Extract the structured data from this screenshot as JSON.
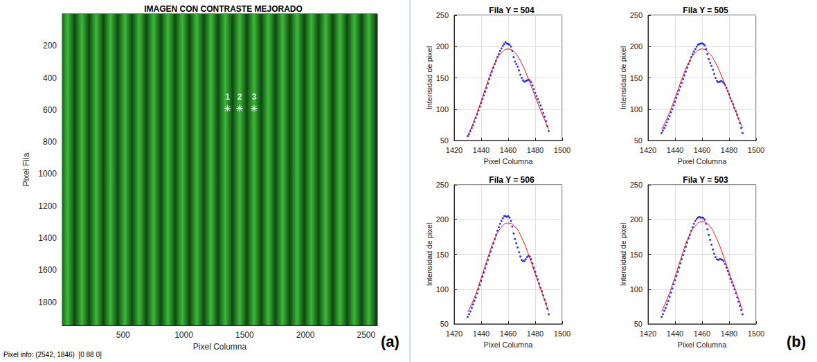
{
  "figure": {
    "panel_labels": [
      "(a)",
      "(b)"
    ],
    "status_text": "Pixel info: (2542, 1846)  [0 88 0]"
  },
  "chart_data": [
    {
      "type": "image",
      "title": "IMAGEN CON CONTRASTE MEJORADO",
      "x_label": "Pixel Columna",
      "y_label": "Pixel Fila",
      "xlim": [
        0,
        2592
      ],
      "ylim": [
        0,
        1944
      ],
      "xticks": [
        500,
        1000,
        1500,
        2000,
        2500
      ],
      "yticks": [
        200,
        400,
        600,
        800,
        1000,
        1200,
        1400,
        1600,
        1800
      ],
      "grid": false,
      "color": "#3cb83a",
      "fringe_centers": [
        43,
        161,
        279,
        397,
        515,
        633,
        751,
        869,
        987,
        1105,
        1223,
        1341,
        1459,
        1577,
        1695,
        1813,
        1931,
        2049,
        2167,
        2285,
        2403,
        2521
      ],
      "fringe_width": 118,
      "markers": {
        "x": [
          1360,
          1459,
          1578
        ],
        "y": [
          590,
          590,
          590
        ],
        "labels": [
          "1",
          "2",
          "3"
        ],
        "color": "#ffffff",
        "marker": "asterisk"
      }
    },
    {
      "type": "scatter",
      "title": "Fila Y = 504",
      "x_label": "Pixel Columna",
      "y_label": "Intensidad de pixel",
      "xlim": [
        1420,
        1500
      ],
      "ylim": [
        50,
        250
      ],
      "xticks": [
        1420,
        1440,
        1460,
        1480,
        1500
      ],
      "yticks": [
        50,
        100,
        150,
        200,
        250
      ],
      "grid": true,
      "series": [
        {
          "type": "scatter",
          "color": "#0000ff",
          "marker": "circle",
          "x": [
            1430,
            1431,
            1432,
            1433,
            1434,
            1435,
            1436,
            1437,
            1438,
            1439,
            1440,
            1441,
            1442,
            1443,
            1444,
            1445,
            1446,
            1447,
            1448,
            1449,
            1450,
            1451,
            1452,
            1453,
            1454,
            1455,
            1456,
            1457,
            1458,
            1459,
            1460,
            1461,
            1462,
            1463,
            1464,
            1465,
            1466,
            1467,
            1468,
            1469,
            1470,
            1471,
            1472,
            1473,
            1474,
            1475,
            1476,
            1477,
            1478,
            1479,
            1480,
            1481,
            1482,
            1483,
            1484,
            1485,
            1486,
            1487,
            1488,
            1489,
            1490
          ],
          "values": [
            57,
            60,
            65,
            70,
            74,
            80,
            86,
            92,
            98,
            104,
            110,
            116,
            122,
            128,
            134,
            141,
            148,
            154,
            160,
            166,
            172,
            177,
            183,
            188,
            193,
            197,
            201,
            204,
            207,
            205,
            204,
            203,
            200,
            193,
            183,
            176,
            172,
            168,
            162,
            155,
            150,
            146,
            144,
            145,
            146,
            147,
            146,
            143,
            138,
            132,
            126,
            121,
            116,
            111,
            106,
            100,
            94,
            88,
            81,
            73,
            65
          ]
        },
        {
          "type": "line",
          "color": "#ff0000",
          "line_style": "solid",
          "x": [
            1430,
            1435,
            1440,
            1445,
            1450,
            1455,
            1460,
            1465,
            1470,
            1475,
            1480,
            1485,
            1490
          ],
          "values": [
            57,
            83,
            113,
            145,
            173,
            190,
            196,
            190,
            173,
            148,
            120,
            93,
            68
          ]
        }
      ]
    },
    {
      "type": "scatter",
      "title": "Fila Y = 505",
      "x_label": "Pixel Columna",
      "y_label": "Intensidad de pixel",
      "xlim": [
        1420,
        1500
      ],
      "ylim": [
        50,
        250
      ],
      "xticks": [
        1420,
        1440,
        1460,
        1480,
        1500
      ],
      "yticks": [
        50,
        100,
        150,
        200,
        250
      ],
      "grid": true,
      "series": [
        {
          "type": "scatter",
          "color": "#0000ff",
          "marker": "circle",
          "x": [
            1430,
            1431,
            1432,
            1433,
            1434,
            1435,
            1436,
            1437,
            1438,
            1439,
            1440,
            1441,
            1442,
            1443,
            1444,
            1445,
            1446,
            1447,
            1448,
            1449,
            1450,
            1451,
            1452,
            1453,
            1454,
            1455,
            1456,
            1457,
            1458,
            1459,
            1460,
            1461,
            1462,
            1463,
            1464,
            1465,
            1466,
            1467,
            1468,
            1469,
            1470,
            1471,
            1472,
            1473,
            1474,
            1475,
            1476,
            1477,
            1478,
            1479,
            1480,
            1481,
            1482,
            1483,
            1484,
            1485,
            1486,
            1487,
            1488,
            1489,
            1490
          ],
          "values": [
            62,
            66,
            70,
            74,
            79,
            84,
            89,
            95,
            100,
            106,
            112,
            118,
            124,
            130,
            136,
            142,
            148,
            154,
            160,
            166,
            172,
            177,
            183,
            188,
            192,
            196,
            200,
            203,
            204,
            205,
            205,
            204,
            202,
            196,
            188,
            180,
            174,
            169,
            163,
            156,
            150,
            145,
            143,
            144,
            145,
            144,
            142,
            139,
            134,
            129,
            124,
            118,
            113,
            108,
            102,
            97,
            91,
            85,
            78,
            70,
            62
          ]
        },
        {
          "type": "line",
          "color": "#ff0000",
          "line_style": "solid",
          "x": [
            1430,
            1435,
            1440,
            1445,
            1450,
            1455,
            1460,
            1465,
            1470,
            1475,
            1480,
            1485,
            1490
          ],
          "values": [
            68,
            90,
            118,
            148,
            174,
            190,
            196,
            190,
            174,
            150,
            123,
            96,
            70
          ]
        }
      ]
    },
    {
      "type": "scatter",
      "title": "Fila Y = 506",
      "x_label": "Pixel Columna",
      "y_label": "Intensidad de pixel",
      "xlim": [
        1420,
        1500
      ],
      "ylim": [
        50,
        250
      ],
      "xticks": [
        1420,
        1440,
        1460,
        1480,
        1500
      ],
      "yticks": [
        50,
        100,
        150,
        200,
        250
      ],
      "grid": true,
      "series": [
        {
          "type": "scatter",
          "color": "#0000ff",
          "marker": "circle",
          "x": [
            1430,
            1431,
            1432,
            1433,
            1434,
            1435,
            1436,
            1437,
            1438,
            1439,
            1440,
            1441,
            1442,
            1443,
            1444,
            1445,
            1446,
            1447,
            1448,
            1449,
            1450,
            1451,
            1452,
            1453,
            1454,
            1455,
            1456,
            1457,
            1458,
            1459,
            1460,
            1461,
            1462,
            1463,
            1464,
            1465,
            1466,
            1467,
            1468,
            1469,
            1470,
            1471,
            1472,
            1473,
            1474,
            1475,
            1476,
            1477,
            1478,
            1479,
            1480,
            1481,
            1482,
            1483,
            1484,
            1485,
            1486,
            1487,
            1488,
            1489,
            1490
          ],
          "values": [
            60,
            64,
            68,
            73,
            78,
            83,
            88,
            94,
            100,
            106,
            112,
            118,
            124,
            130,
            136,
            142,
            148,
            154,
            160,
            166,
            172,
            178,
            184,
            189,
            194,
            198,
            202,
            205,
            205,
            204,
            205,
            203,
            198,
            190,
            180,
            172,
            166,
            160,
            153,
            147,
            142,
            140,
            141,
            143,
            146,
            148,
            147,
            143,
            137,
            131,
            125,
            119,
            114,
            108,
            102,
            97,
            91,
            85,
            79,
            72,
            64
          ]
        },
        {
          "type": "line",
          "color": "#ff0000",
          "line_style": "solid",
          "x": [
            1430,
            1435,
            1440,
            1445,
            1450,
            1455,
            1460,
            1465,
            1470,
            1475,
            1480,
            1485,
            1490
          ],
          "values": [
            67,
            88,
            116,
            146,
            172,
            189,
            195,
            190,
            174,
            150,
            122,
            95,
            68
          ]
        }
      ]
    },
    {
      "type": "scatter",
      "title": "Fila Y = 503",
      "x_label": "Pixel Columna",
      "y_label": "Intensidad de pixel",
      "xlim": [
        1420,
        1500
      ],
      "ylim": [
        50,
        250
      ],
      "xticks": [
        1420,
        1440,
        1460,
        1480,
        1500
      ],
      "yticks": [
        50,
        100,
        150,
        200,
        250
      ],
      "grid": true,
      "series": [
        {
          "type": "scatter",
          "color": "#0000ff",
          "marker": "circle",
          "x": [
            1430,
            1431,
            1432,
            1433,
            1434,
            1435,
            1436,
            1437,
            1438,
            1439,
            1440,
            1441,
            1442,
            1443,
            1444,
            1445,
            1446,
            1447,
            1448,
            1449,
            1450,
            1451,
            1452,
            1453,
            1454,
            1455,
            1456,
            1457,
            1458,
            1459,
            1460,
            1461,
            1462,
            1463,
            1464,
            1465,
            1466,
            1467,
            1468,
            1469,
            1470,
            1471,
            1472,
            1473,
            1474,
            1475,
            1476,
            1477,
            1478,
            1479,
            1480,
            1481,
            1482,
            1483,
            1484,
            1485,
            1486,
            1487,
            1488,
            1489,
            1490
          ],
          "values": [
            60,
            64,
            69,
            73,
            78,
            83,
            89,
            95,
            101,
            107,
            113,
            119,
            125,
            131,
            137,
            143,
            149,
            155,
            161,
            167,
            173,
            178,
            184,
            189,
            194,
            198,
            201,
            203,
            204,
            203,
            203,
            202,
            200,
            194,
            186,
            178,
            171,
            164,
            157,
            151,
            146,
            143,
            142,
            143,
            143,
            142,
            140,
            136,
            131,
            126,
            121,
            115,
            110,
            105,
            100,
            94,
            88,
            82,
            76,
            70,
            64
          ]
        },
        {
          "type": "line",
          "color": "#ff0000",
          "line_style": "solid",
          "x": [
            1430,
            1435,
            1440,
            1445,
            1450,
            1455,
            1460,
            1465,
            1470,
            1475,
            1480,
            1485,
            1490
          ],
          "values": [
            68,
            90,
            118,
            148,
            175,
            191,
            197,
            192,
            176,
            152,
            124,
            97,
            70
          ]
        }
      ]
    }
  ]
}
